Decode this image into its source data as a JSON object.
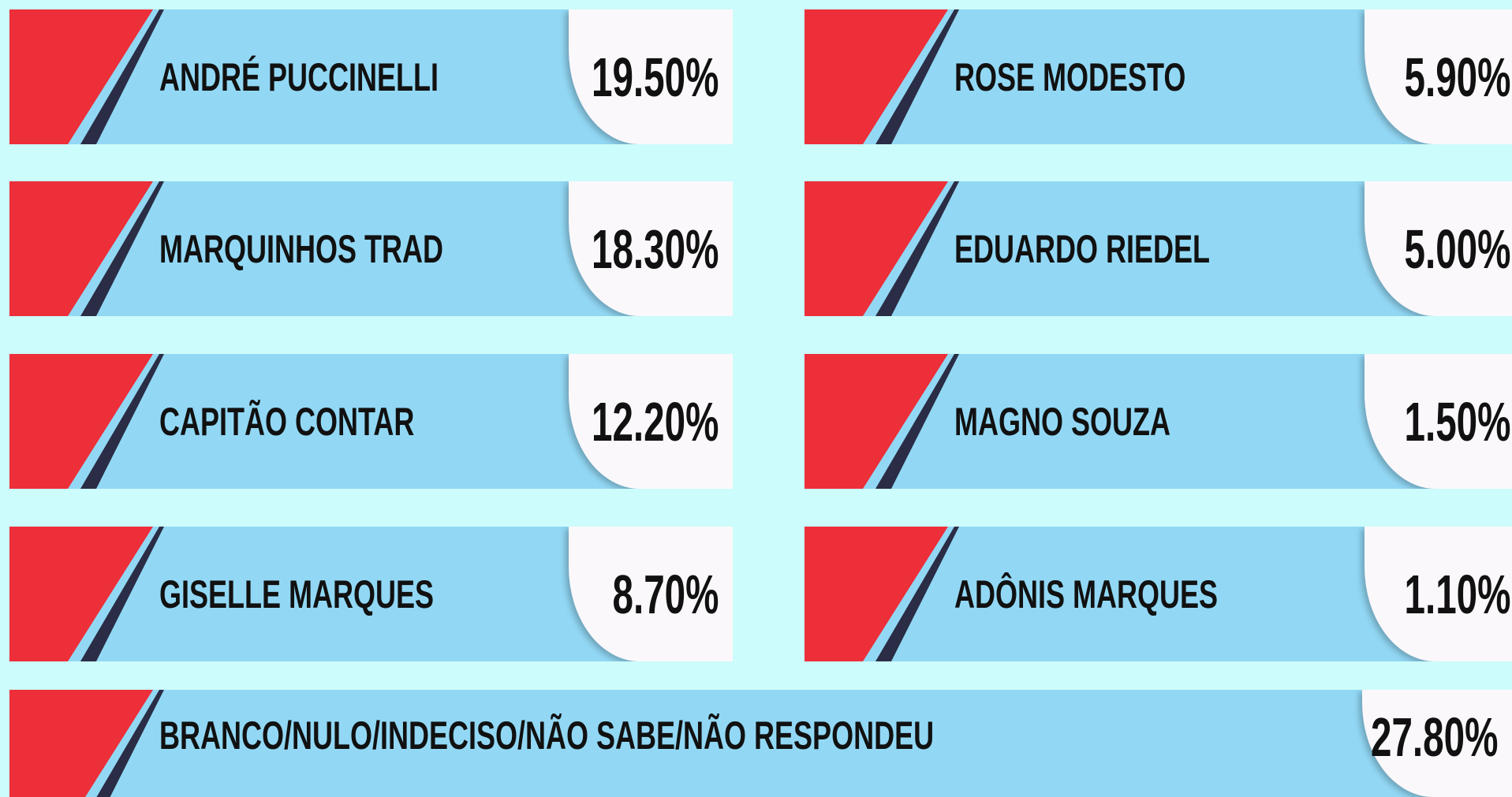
{
  "items": [
    {
      "name": "ANDRÉ PUCCINELLI",
      "value": "19.50%"
    },
    {
      "name": "ROSE MODESTO",
      "value": "5.90%"
    },
    {
      "name": "MARQUINHOS TRAD",
      "value": "18.30%"
    },
    {
      "name": "EDUARDO RIEDEL",
      "value": "5.00%"
    },
    {
      "name": "CAPITÃO CONTAR",
      "value": "12.20%"
    },
    {
      "name": "MAGNO SOUZA",
      "value": "1.50%"
    },
    {
      "name": "GISELLE MARQUES",
      "value": "8.70%"
    },
    {
      "name": "ADÔNIS MARQUES",
      "value": "1.10%"
    },
    {
      "name": "BRANCO/NULO/INDECISO/NÃO SABE/NÃO RESPONDEU",
      "value": "27.80%"
    }
  ]
}
